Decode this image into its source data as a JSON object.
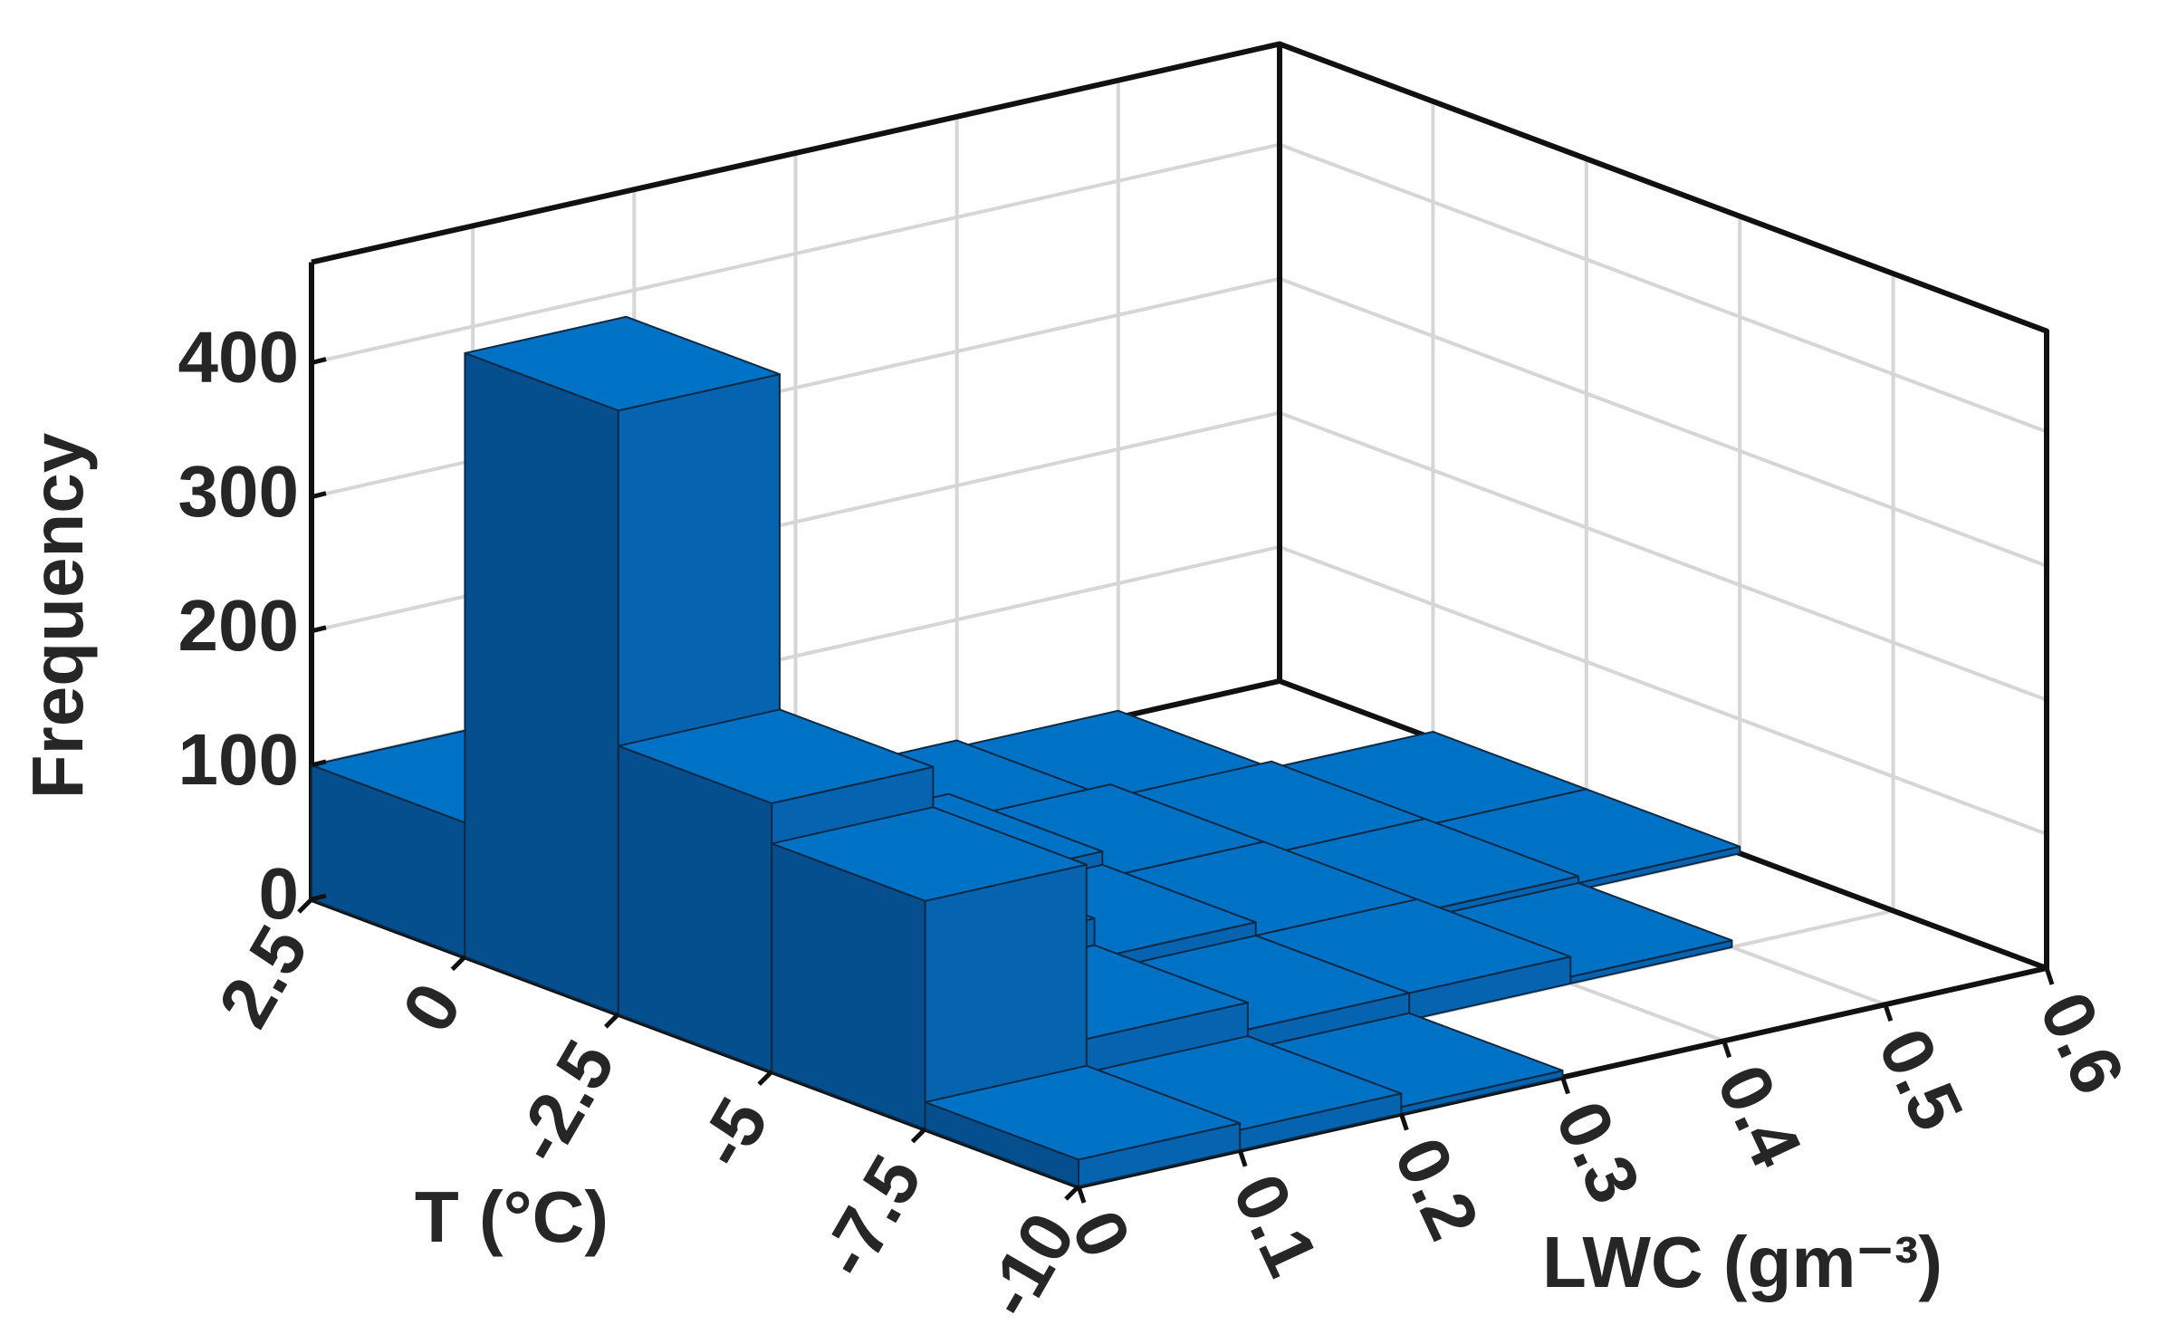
{
  "chart_data": {
    "type": "bar3",
    "xlabel": "T (°C)",
    "ylabel": "LWC (gm⁻³)",
    "zlabel": "Frequency",
    "x_bins": [
      2.5,
      0,
      -2.5,
      -5,
      -7.5,
      -10
    ],
    "y_bins": [
      0,
      0.1,
      0.2,
      0.3,
      0.4,
      0.5,
      0.6
    ],
    "values": [
      [
        100,
        60,
        30,
        10,
        5,
        0
      ],
      [
        450,
        80,
        40,
        20,
        10,
        5
      ],
      [
        200,
        60,
        30,
        20,
        10,
        5
      ],
      [
        170,
        40,
        20,
        20,
        5,
        0
      ],
      [
        20,
        15,
        5,
        0,
        0,
        0
      ]
    ],
    "xlim": [
      2.5,
      -10
    ],
    "xticks": [
      2.5,
      0,
      -2.5,
      -5,
      -7.5,
      -10
    ],
    "ylim": [
      0,
      0.6
    ],
    "yticks": [
      0,
      0.1,
      0.2,
      0.3,
      0.4,
      0.5,
      0.6
    ],
    "zlim": [
      0,
      475
    ],
    "zticks": [
      0,
      100,
      200,
      300,
      400
    ],
    "color": "#0072c6",
    "grid": true
  }
}
